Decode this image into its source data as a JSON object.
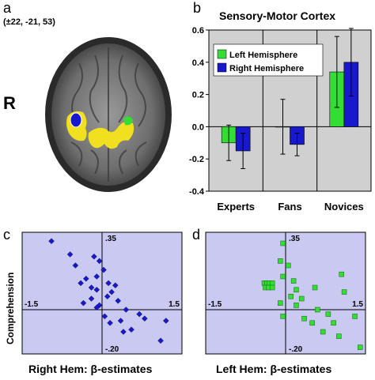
{
  "panel_a": {
    "letter": "a",
    "coordinates": "(±22, -21, 53)",
    "hemisphere_marker": "R"
  },
  "panel_b": {
    "letter": "b"
  },
  "panel_c": {
    "letter": "c"
  },
  "panel_d": {
    "letter": "d"
  },
  "colors": {
    "left": "#33dd33",
    "right": "#1818cc",
    "plot_bg": "#c9c9f2",
    "bar_bg": "#d0d0d0",
    "brain_yellow": "#f0e020"
  },
  "chart_data": [
    {
      "type": "bar",
      "title": "Sensory-Motor Cortex",
      "categories": [
        "Experts",
        "Fans",
        "Novices"
      ],
      "series": [
        {
          "name": "Left Hemisphere",
          "values": [
            -0.1,
            0.0,
            0.34
          ],
          "errors": [
            0.11,
            0.17,
            0.22
          ]
        },
        {
          "name": "Right Hemisphere",
          "values": [
            -0.15,
            -0.11,
            0.4
          ],
          "errors": [
            0.11,
            0.07,
            0.21
          ]
        }
      ],
      "ylim": [
        -0.4,
        0.6
      ],
      "yticks": [
        "0.6",
        "0.4",
        "0.2",
        "0.0",
        "-0.2",
        "-0.4"
      ],
      "legend": "top-left"
    },
    {
      "type": "scatter",
      "xlabel": "Right Hem: β-estimates",
      "ylabel": "Comprehension",
      "xlim": [
        -1.5,
        1.5
      ],
      "ylim": [
        -0.2,
        0.35
      ],
      "tick_labels": {
        "xmin": "-1.5",
        "xmax": "1.5",
        "ymin": "-.20",
        "ymax": ".35"
      },
      "marker": "diamond",
      "points": [
        [
          -0.95,
          0.31
        ],
        [
          -0.6,
          0.25
        ],
        [
          -0.15,
          0.24
        ],
        [
          -0.05,
          0.22
        ],
        [
          0.03,
          0.18
        ],
        [
          -0.5,
          0.2
        ],
        [
          -0.1,
          0.15
        ],
        [
          -0.3,
          0.14
        ],
        [
          -0.4,
          0.12
        ],
        [
          -0.2,
          0.1
        ],
        [
          -0.1,
          0.09
        ],
        [
          0.12,
          0.12
        ],
        [
          0.25,
          0.11
        ],
        [
          0.18,
          0.08
        ],
        [
          -0.2,
          0.05
        ],
        [
          0.1,
          0.06
        ],
        [
          0.3,
          0.04
        ],
        [
          -0.35,
          0.03
        ],
        [
          -0.05,
          0.02
        ],
        [
          0.45,
          0.0
        ],
        [
          0.7,
          -0.02
        ],
        [
          0.35,
          -0.05
        ],
        [
          0.05,
          -0.03
        ],
        [
          -0.1,
          0.01
        ],
        [
          0.8,
          -0.04
        ],
        [
          1.2,
          -0.05
        ],
        [
          0.4,
          -0.1
        ],
        [
          1.1,
          -0.14
        ],
        [
          0.55,
          -0.09
        ],
        [
          0.15,
          -0.06
        ]
      ]
    },
    {
      "type": "scatter",
      "xlabel": "Left Hem: β-estimates",
      "ylabel": "",
      "xlim": [
        -1.5,
        1.5
      ],
      "ylim": [
        -0.2,
        0.35
      ],
      "tick_labels": {
        "xmin": "-1.5",
        "xmax": "1.5",
        "ymin": "-.20",
        "ymax": ".35"
      },
      "marker": "square",
      "points": [
        [
          -0.05,
          0.3
        ],
        [
          -0.1,
          0.22
        ],
        [
          0.05,
          0.2
        ],
        [
          -0.05,
          0.15
        ],
        [
          0.15,
          0.13
        ],
        [
          -0.4,
          0.12
        ],
        [
          -0.35,
          0.12
        ],
        [
          -0.3,
          0.12
        ],
        [
          -0.25,
          0.12
        ],
        [
          -0.38,
          0.1
        ],
        [
          -0.32,
          0.1
        ],
        [
          -0.25,
          0.1
        ],
        [
          0.2,
          0.09
        ],
        [
          0.55,
          0.1
        ],
        [
          1.05,
          0.16
        ],
        [
          1.1,
          0.08
        ],
        [
          0.1,
          0.06
        ],
        [
          0.3,
          0.05
        ],
        [
          -0.1,
          0.03
        ],
        [
          0.2,
          0.02
        ],
        [
          0.6,
          0.0
        ],
        [
          0.8,
          -0.02
        ],
        [
          -0.05,
          -0.03
        ],
        [
          0.35,
          -0.04
        ],
        [
          0.5,
          -0.06
        ],
        [
          0.9,
          -0.06
        ],
        [
          1.3,
          -0.03
        ],
        [
          0.7,
          -0.1
        ],
        [
          1.0,
          -0.12
        ],
        [
          1.4,
          -0.17
        ]
      ]
    }
  ]
}
